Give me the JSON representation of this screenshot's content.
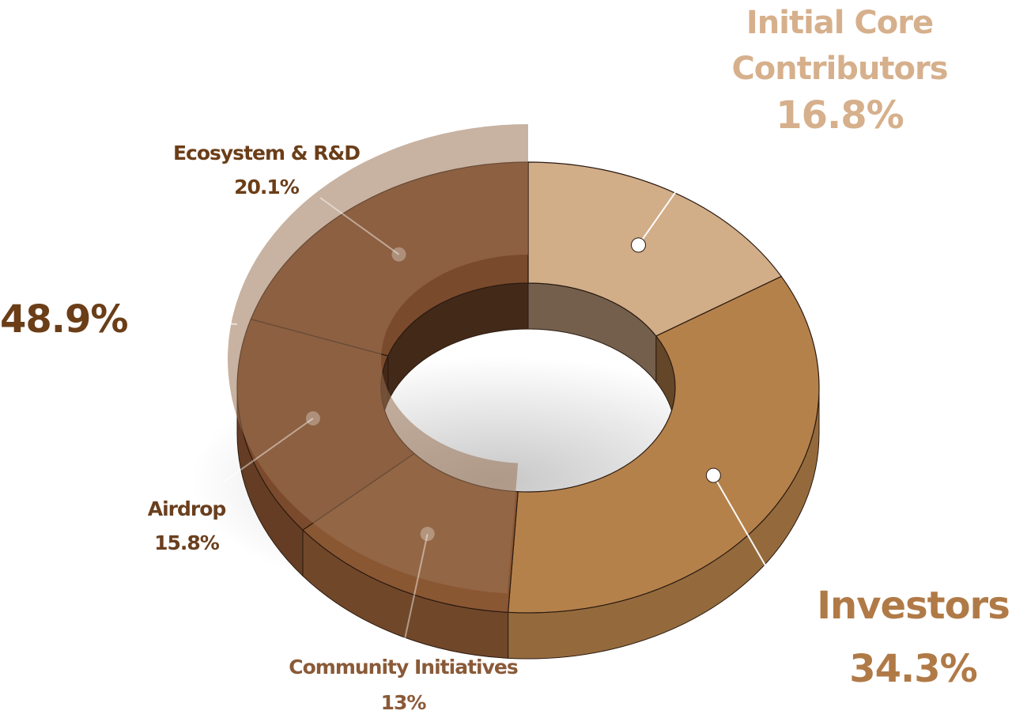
{
  "chart_data": {
    "type": "pie",
    "variant": "3d-donut",
    "title": "",
    "slices": [
      {
        "name": "Initial Core Contributors",
        "value": 16.8,
        "label": "16.8%",
        "color": "#d1ad88"
      },
      {
        "name": "Investors",
        "value": 34.3,
        "label": "34.3%",
        "color": "#b5814b"
      },
      {
        "name": "Community Initiatives",
        "value": 13.0,
        "label": "13%",
        "color": "#8a5733"
      },
      {
        "name": "Airdrop",
        "value": 15.8,
        "label": "15.8%",
        "color": "#7b4a2c"
      },
      {
        "name": "Ecosystem & R&D",
        "value": 20.1,
        "label": "20.1%",
        "color": "#7a4a2c"
      }
    ],
    "group_total": {
      "label": "48.9%",
      "members": [
        "Community Initiatives",
        "Airdrop",
        "Ecosystem & R&D"
      ]
    },
    "label_colors": {
      "Initial Core Contributors": "#d6b08c",
      "Investors": "#b07a47",
      "Community Initiatives": "#8a5a38",
      "Airdrop": "#6a3f1e",
      "Ecosystem & R&D": "#6b3e18",
      "group_total": "#6b3e18"
    }
  }
}
